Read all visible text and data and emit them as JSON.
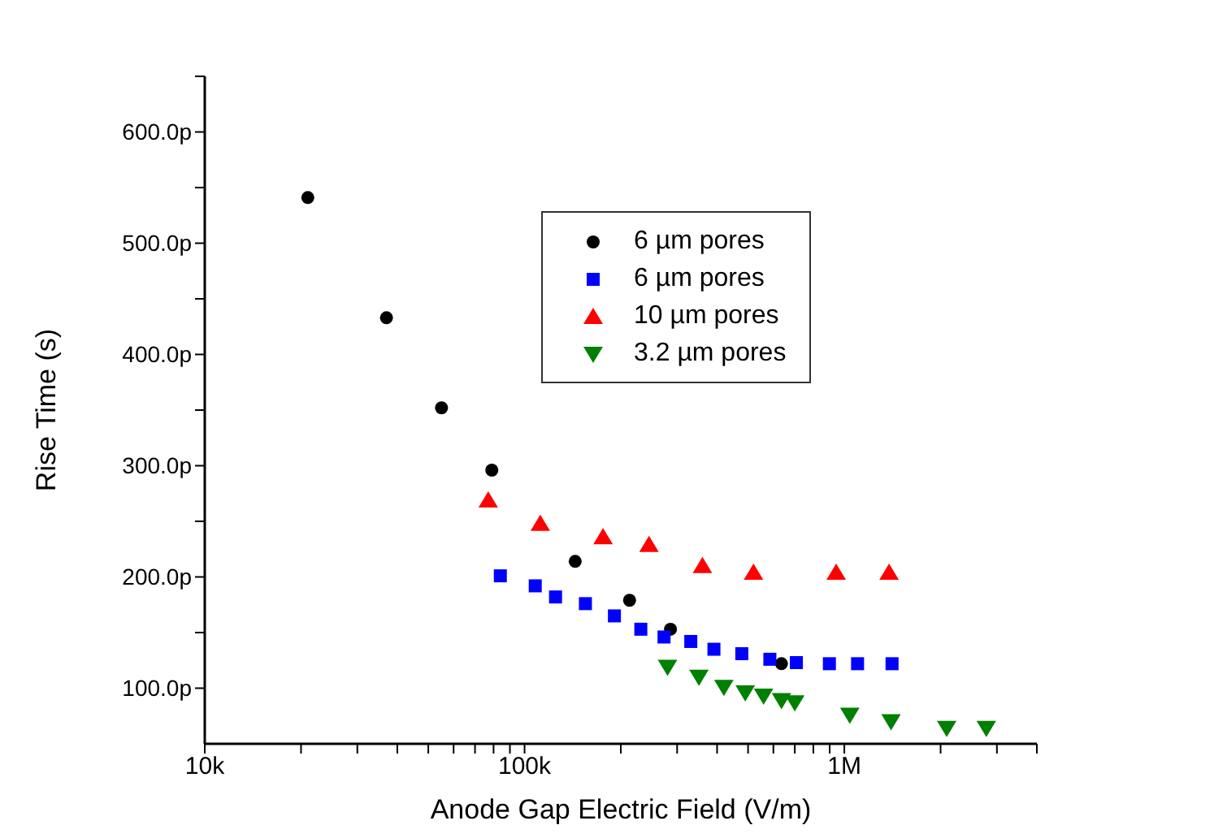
{
  "chart_data": {
    "type": "scatter",
    "xlabel": "Anode Gap Electric Field (V/m)",
    "ylabel": "Rise Time (s)",
    "log": "x",
    "legend": "right",
    "grid": false,
    "xlim": [
      10000,
      4000000
    ],
    "xticks": [
      {
        "value": 10000,
        "label": "10k"
      },
      {
        "value": 20000,
        "label": null
      },
      {
        "value": 30000,
        "label": null
      },
      {
        "value": 40000,
        "label": null
      },
      {
        "value": 50000,
        "label": null
      },
      {
        "value": 60000,
        "label": null
      },
      {
        "value": 70000,
        "label": null
      },
      {
        "value": 80000,
        "label": null
      },
      {
        "value": 90000,
        "label": null
      },
      {
        "value": 100000,
        "label": "100k"
      },
      {
        "value": 200000,
        "label": null
      },
      {
        "value": 300000,
        "label": null
      },
      {
        "value": 400000,
        "label": null
      },
      {
        "value": 500000,
        "label": null
      },
      {
        "value": 600000,
        "label": null
      },
      {
        "value": 700000,
        "label": null
      },
      {
        "value": 800000,
        "label": null
      },
      {
        "value": 900000,
        "label": null
      },
      {
        "value": 1000000,
        "label": "1M"
      },
      {
        "value": 2000000,
        "label": null
      },
      {
        "value": 3000000,
        "label": null
      },
      {
        "value": 4000000,
        "label": null
      }
    ],
    "ylim": [
      50,
      650
    ],
    "yticks": [
      {
        "value": 100,
        "label": "100.0p"
      },
      {
        "value": 150,
        "label": null
      },
      {
        "value": 200,
        "label": "200.0p"
      },
      {
        "value": 250,
        "label": null
      },
      {
        "value": 300,
        "label": "300.0p"
      },
      {
        "value": 350,
        "label": null
      },
      {
        "value": 400,
        "label": "400.0p"
      },
      {
        "value": 450,
        "label": null
      },
      {
        "value": 500,
        "label": "500.0p"
      },
      {
        "value": 550,
        "label": null
      },
      {
        "value": 600,
        "label": "600.0p"
      },
      {
        "value": 650,
        "label": null
      }
    ],
    "series": [
      {
        "name": "6 µm pores",
        "color": "#000000",
        "marker": "circle",
        "x": [
          21000,
          37000,
          55000,
          79000,
          144000,
          213000,
          286000,
          636000
        ],
        "values": [
          541,
          433,
          352,
          296,
          214,
          179,
          153,
          122
        ]
      },
      {
        "name": "6 µm pores",
        "color": "#0000ff",
        "marker": "square",
        "x": [
          84000,
          108000,
          125000,
          155000,
          191000,
          231000,
          273000,
          331000,
          391000,
          478000,
          585000,
          708000,
          898000,
          1100000,
          1410000
        ],
        "values": [
          201,
          192,
          182,
          176,
          165,
          153,
          146,
          142,
          135,
          131,
          126,
          123,
          122,
          122,
          122
        ]
      },
      {
        "name": "10 µm pores",
        "color": "#ff0000",
        "marker": "triangle",
        "x": [
          77000,
          112000,
          176000,
          245000,
          360000,
          520000,
          943000,
          1380000
        ],
        "values": [
          269,
          248,
          236,
          229,
          210,
          204,
          204,
          204
        ]
      },
      {
        "name": "3.2 µm pores",
        "color": "#008000",
        "marker": "triangle-down",
        "x": [
          280000,
          351000,
          420000,
          490000,
          559000,
          636000,
          700000,
          1040000,
          1400000,
          2090000,
          2780000
        ],
        "values": [
          119,
          110,
          101,
          96,
          93,
          89,
          87,
          76,
          70,
          64,
          64
        ]
      }
    ]
  }
}
